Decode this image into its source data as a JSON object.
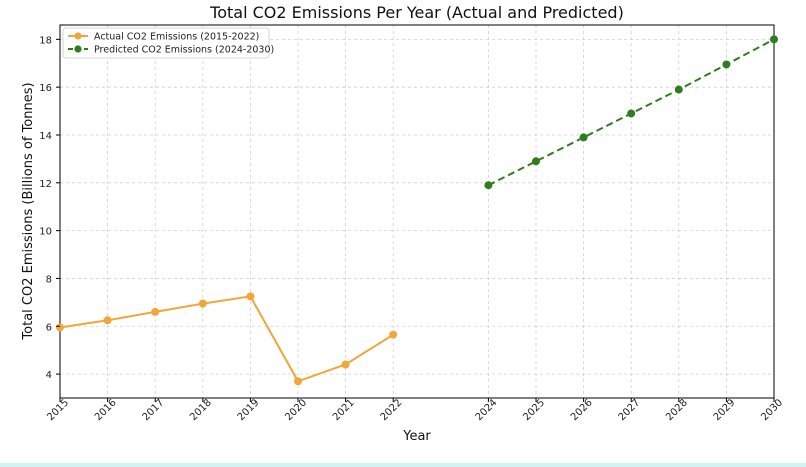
{
  "chart_data": {
    "type": "line",
    "title": "Total CO2 Emissions Per Year (Actual and Predicted)",
    "xlabel": "Year",
    "ylabel": "Total CO2 Emissions (Billions of Tonnes)",
    "xlim": [
      2015,
      2030
    ],
    "ylim": [
      3.0,
      18.6
    ],
    "grid": true,
    "legend_position": "top-left",
    "x_ticks": [
      2015,
      2016,
      2017,
      2018,
      2019,
      2020,
      2021,
      2022,
      2024,
      2025,
      2026,
      2027,
      2028,
      2029,
      2030
    ],
    "y_ticks": [
      4,
      6,
      8,
      10,
      12,
      14,
      16,
      18
    ],
    "series": [
      {
        "name": "Actual CO2 Emissions (2015-2022)",
        "color": "#f0a73a",
        "linestyle": "solid",
        "marker": "circle",
        "x": [
          2015,
          2016,
          2017,
          2018,
          2019,
          2020,
          2021,
          2022
        ],
        "y": [
          5.95,
          6.25,
          6.6,
          6.95,
          7.25,
          3.7,
          4.4,
          5.65
        ]
      },
      {
        "name": "Predicted CO2 Emissions (2024-2030)",
        "color": "#2f7d1f",
        "linestyle": "dashed",
        "marker": "circle",
        "x": [
          2024,
          2025,
          2026,
          2027,
          2028,
          2029,
          2030
        ],
        "y": [
          11.9,
          12.9,
          13.9,
          14.9,
          15.9,
          16.95,
          18.0
        ]
      }
    ]
  }
}
